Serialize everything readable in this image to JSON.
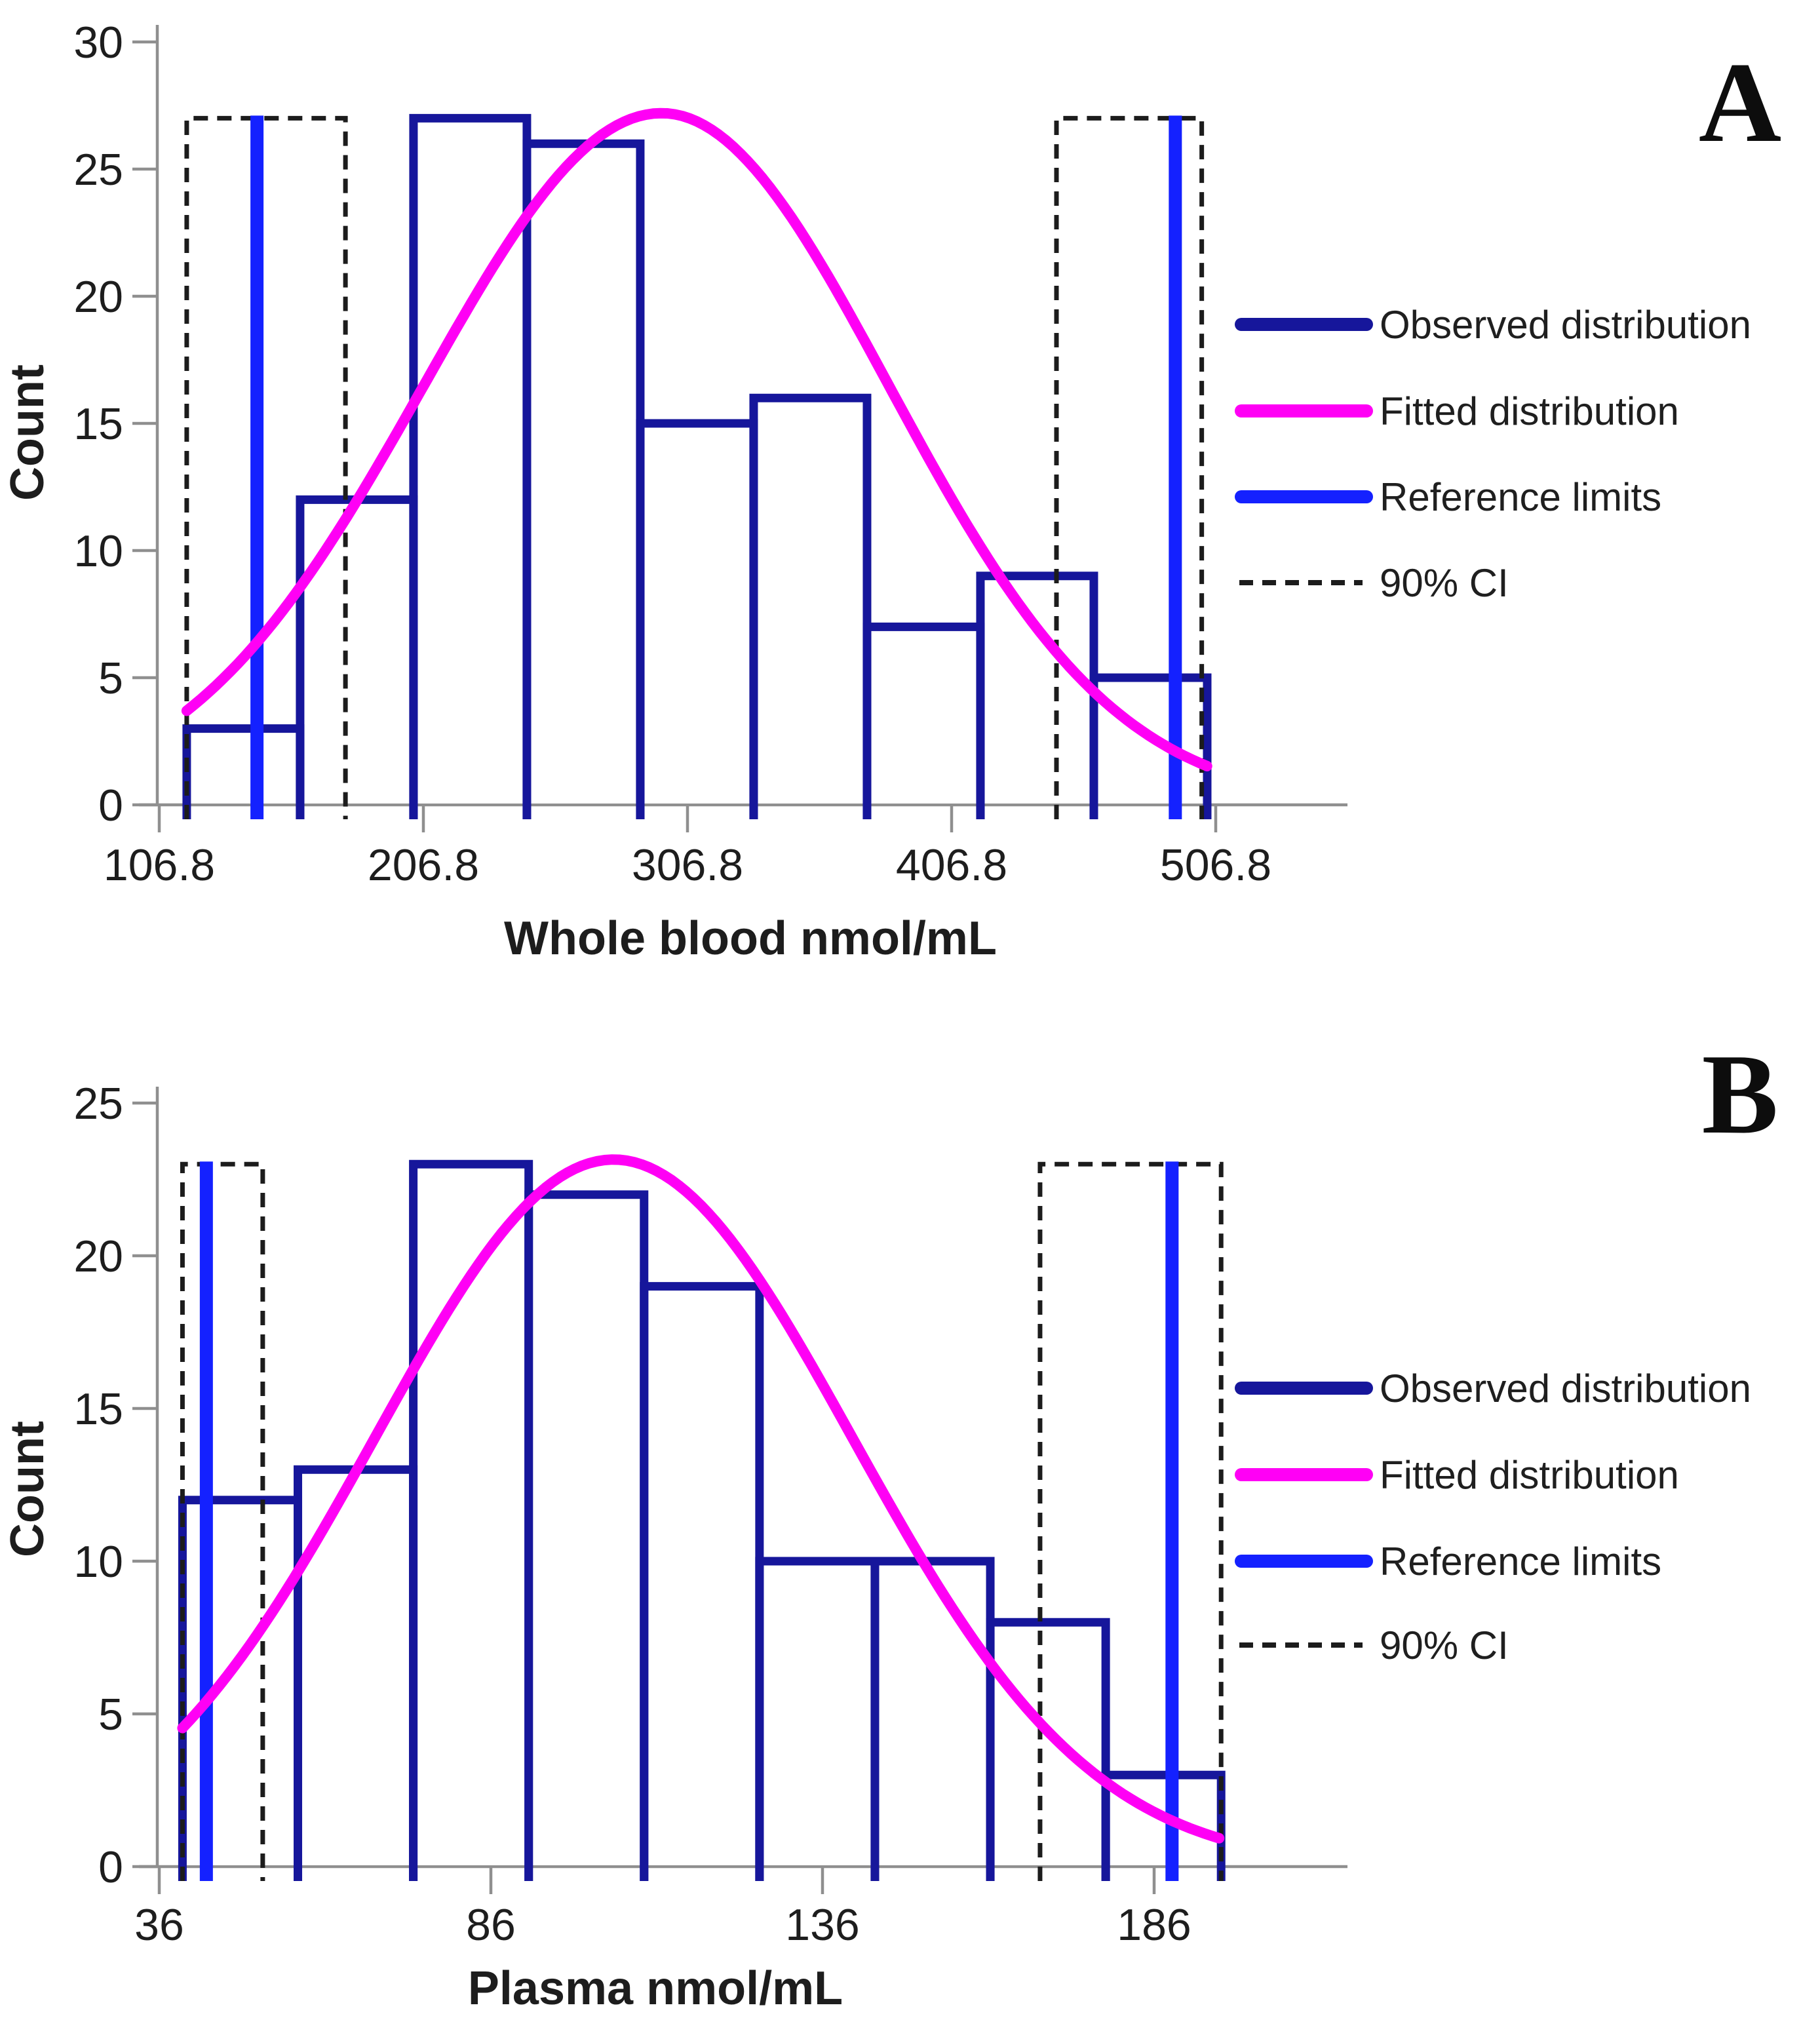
{
  "figure": {
    "colors": {
      "observed": "#16169B",
      "fitted": "#FF00F5",
      "reference": "#1421FF",
      "ci": "#1C1C1C",
      "axis": "#8F8F8F",
      "text": "#1D1D1D",
      "background": "#FFFFFF"
    },
    "legend": {
      "items": [
        {
          "label": "Observed distribution",
          "swatch": "observed"
        },
        {
          "label": "Fitted distribution",
          "swatch": "fitted"
        },
        {
          "label": "Reference limits",
          "swatch": "reference"
        },
        {
          "label": "90% CI",
          "swatch": "ci"
        }
      ]
    },
    "panels": [
      {
        "letter": "A",
        "chart_data": {
          "type": "bar",
          "subtype": "histogram-with-fit",
          "title": "A",
          "xlabel": "Whole blood nmol/mL",
          "ylabel": "Count",
          "xtick_labels": [
            "106.8",
            "206.8",
            "306.8",
            "406.8",
            "506.8"
          ],
          "yticks": [
            0,
            5,
            10,
            15,
            20,
            25,
            30
          ],
          "ylim": [
            0,
            30
          ],
          "xlim": [
            93,
            556
          ],
          "grid": false,
          "bin_start": 117.2,
          "bin_width": 42.93,
          "counts": [
            3,
            12,
            27,
            26,
            15,
            16,
            7,
            9,
            5
          ],
          "fitted_distribution": {
            "shape": "normal",
            "peak_x": 297,
            "peak_y": 27.2,
            "sigma_left": 90,
            "sigma_right": 86,
            "x_range": [
              117.2,
              503.5
            ]
          },
          "reference_limits": [
            143.8,
            491.5
          ],
          "ci_90_boxes": [
            [
              117.2,
              177.3
            ],
            [
              446.5,
              501.5
            ]
          ],
          "marker_top": 27
        }
      },
      {
        "letter": "B",
        "chart_data": {
          "type": "bar",
          "subtype": "histogram-with-fit",
          "title": "B",
          "xlabel": "Plasma nmol/mL",
          "ylabel": "Count",
          "xtick_labels": [
            "36",
            "86",
            "136",
            "186"
          ],
          "yticks": [
            0,
            5,
            10,
            15,
            20,
            25
          ],
          "ylim": [
            0,
            25
          ],
          "xlim": [
            33,
            215
          ],
          "grid": false,
          "bin_start": 39.5,
          "bin_width": 17.4,
          "counts": [
            12,
            13,
            23,
            22,
            19,
            10,
            10,
            8,
            3
          ],
          "fitted_distribution": {
            "shape": "normal",
            "peak_x": 104.5,
            "peak_y": 23.15,
            "sigma_left": 36,
            "sigma_right": 36,
            "x_range": [
              39.5,
              195.8
            ]
          },
          "reference_limits": [
            43.1,
            188.7
          ],
          "ci_90_boxes": [
            [
              39.5,
              51.6
            ],
            [
              168.8,
              196.1
            ]
          ],
          "marker_top": 23
        }
      }
    ]
  }
}
